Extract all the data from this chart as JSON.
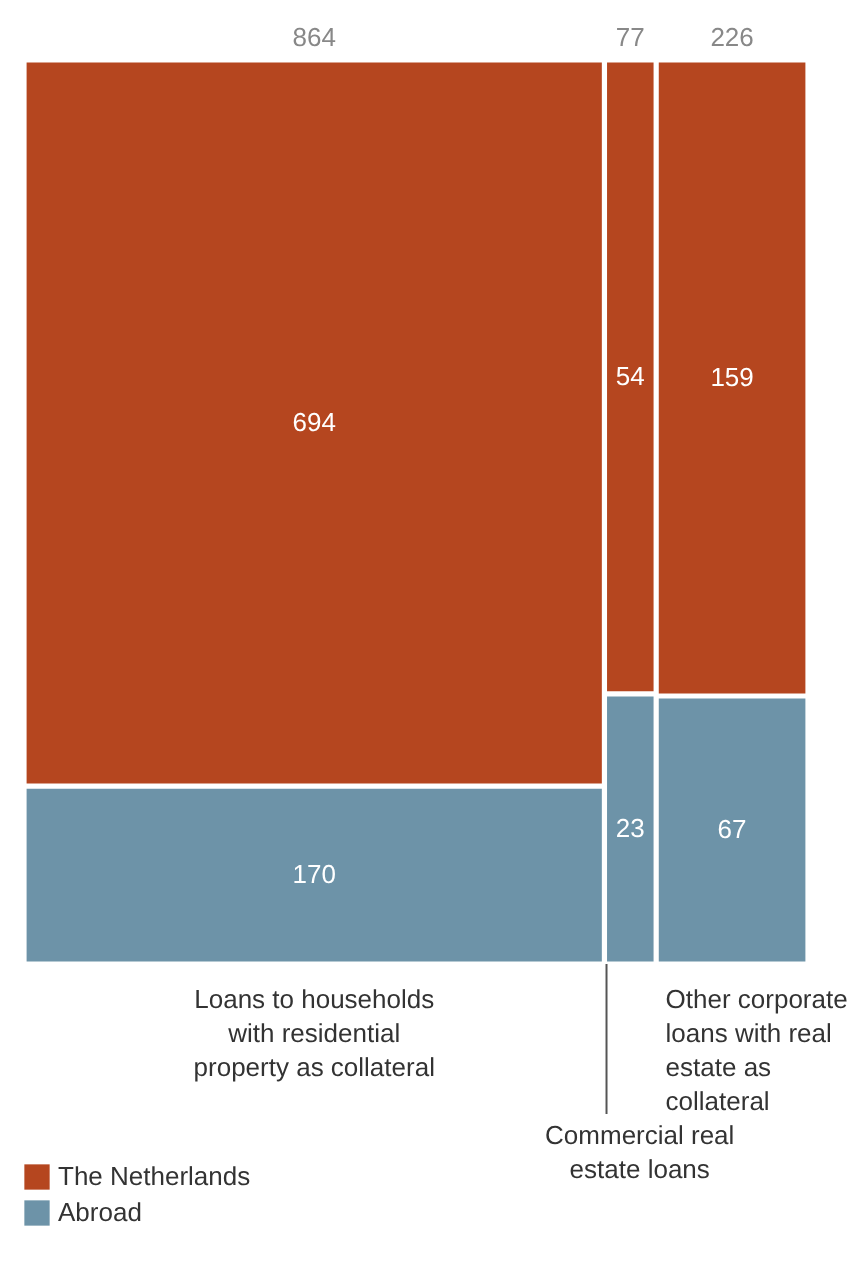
{
  "chart_data": {
    "type": "other",
    "categories": [
      "Loans to households with residential property as collateral",
      "Commercial real estate loans",
      "Other corporate loans with real estate as collateral"
    ],
    "series": [
      {
        "name": "The Netherlands",
        "color": "#b5461f",
        "values": [
          694,
          54,
          159
        ]
      },
      {
        "name": "Abroad",
        "color": "#6d93a8",
        "values": [
          170,
          23,
          67
        ]
      }
    ],
    "totals": [
      "864",
      "77",
      "226"
    ],
    "data_labels": true,
    "legend": "bottom left"
  }
}
